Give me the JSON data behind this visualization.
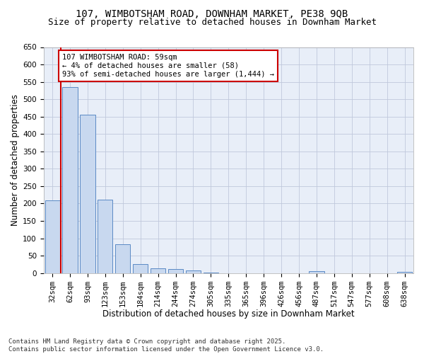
{
  "title_line1": "107, WIMBOTSHAM ROAD, DOWNHAM MARKET, PE38 9QB",
  "title_line2": "Size of property relative to detached houses in Downham Market",
  "xlabel": "Distribution of detached houses by size in Downham Market",
  "ylabel": "Number of detached properties",
  "categories": [
    "32sqm",
    "62sqm",
    "93sqm",
    "123sqm",
    "153sqm",
    "184sqm",
    "214sqm",
    "244sqm",
    "274sqm",
    "305sqm",
    "335sqm",
    "365sqm",
    "396sqm",
    "426sqm",
    "456sqm",
    "487sqm",
    "517sqm",
    "547sqm",
    "577sqm",
    "608sqm",
    "638sqm"
  ],
  "values": [
    208,
    535,
    455,
    212,
    82,
    26,
    14,
    11,
    7,
    1,
    0,
    0,
    0,
    0,
    0,
    5,
    0,
    0,
    0,
    0,
    4
  ],
  "bar_color": "#c8d8ef",
  "bar_edge_color": "#5b8ac5",
  "vline_color": "#cc0000",
  "vline_x": 0.48,
  "annotation_text": "107 WIMBOTSHAM ROAD: 59sqm\n← 4% of detached houses are smaller (58)\n93% of semi-detached houses are larger (1,444) →",
  "annotation_box_facecolor": "#ffffff",
  "annotation_border_color": "#cc0000",
  "ylim": [
    0,
    650
  ],
  "yticks": [
    0,
    50,
    100,
    150,
    200,
    250,
    300,
    350,
    400,
    450,
    500,
    550,
    600,
    650
  ],
  "fig_bg_color": "#ffffff",
  "plot_bg_color": "#e8eef8",
  "grid_color": "#c0c8dc",
  "title_fontsize": 10,
  "subtitle_fontsize": 9,
  "axis_label_fontsize": 8.5,
  "tick_fontsize": 7.5,
  "annotation_fontsize": 7.5,
  "footer_text": "Contains HM Land Registry data © Crown copyright and database right 2025.\nContains public sector information licensed under the Open Government Licence v3.0.",
  "footer_fontsize": 6.5
}
